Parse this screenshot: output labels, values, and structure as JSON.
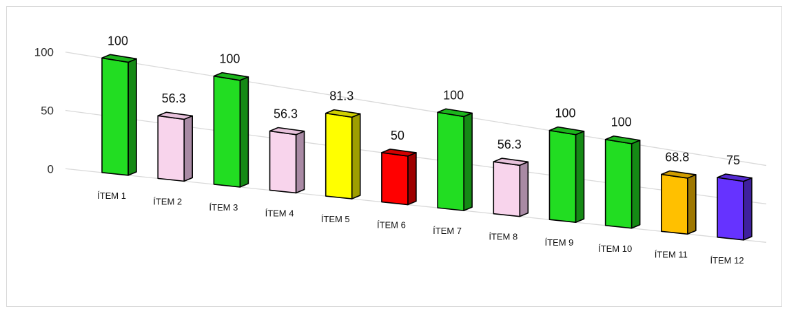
{
  "chart_data": {
    "type": "bar",
    "style": "3d-perspective",
    "categories": [
      "ÍTEM 1",
      "ÍTEM 2",
      "ÍTEM 3",
      "ÍTEM 4",
      "ÍTEM 5",
      "ÍTEM 6",
      "ÍTEM 7",
      "ÍTEM 8",
      "ÍTEM 9",
      "ÍTEM 10",
      "ÍTEM 11",
      "ÍTEM 12"
    ],
    "values": [
      100,
      56.3,
      100,
      56.3,
      81.3,
      50,
      100,
      56.3,
      100,
      100,
      68.8,
      75
    ],
    "value_labels": [
      "100",
      "56.3",
      "100",
      "56.3",
      "81.3",
      "50",
      "100",
      "56.3",
      "100",
      "100",
      "68.8",
      "75"
    ],
    "bar_colors": [
      "#22dd22",
      "#f8d4ec",
      "#22dd22",
      "#f8d4ec",
      "#ffff00",
      "#ff0000",
      "#22dd22",
      "#f8d4ec",
      "#22dd22",
      "#22dd22",
      "#ffc000",
      "#6633ff"
    ],
    "yticks": [
      "0",
      "50",
      "100"
    ],
    "ylim": [
      0,
      100
    ],
    "grid": true,
    "legend": "none"
  }
}
